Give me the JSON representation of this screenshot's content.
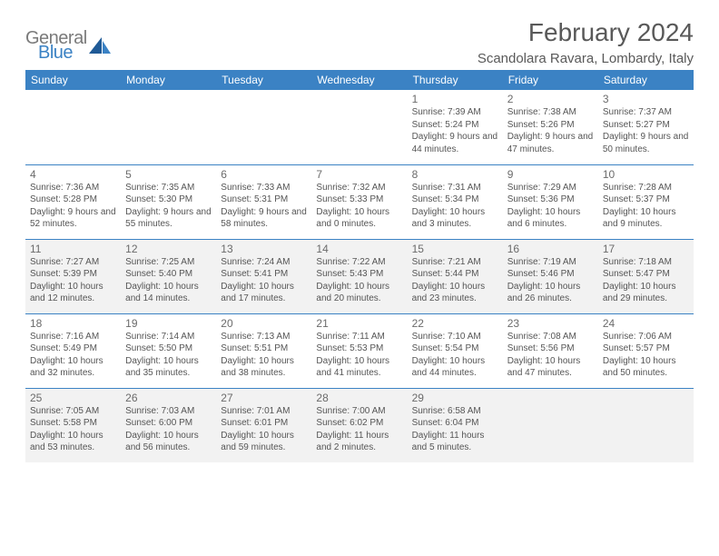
{
  "logo": {
    "text1": "General",
    "text2": "Blue"
  },
  "title": "February 2024",
  "location": "Scandolara Ravara, Lombardy, Italy",
  "colors": {
    "header_bg": "#3b82c4",
    "header_fg": "#ffffff",
    "shade": "#f2f2f2",
    "border": "#3b82c4",
    "text": "#555555",
    "title_color": "#595959"
  },
  "fonts": {
    "title_size": 28,
    "location_size": 15,
    "header_size": 12,
    "daynum_size": 12,
    "info_size": 10
  },
  "day_headers": [
    "Sunday",
    "Monday",
    "Tuesday",
    "Wednesday",
    "Thursday",
    "Friday",
    "Saturday"
  ],
  "weeks": [
    [
      {
        "num": "",
        "sunrise": "",
        "sunset": "",
        "daylight": "",
        "shade": false
      },
      {
        "num": "",
        "sunrise": "",
        "sunset": "",
        "daylight": "",
        "shade": false
      },
      {
        "num": "",
        "sunrise": "",
        "sunset": "",
        "daylight": "",
        "shade": false
      },
      {
        "num": "",
        "sunrise": "",
        "sunset": "",
        "daylight": "",
        "shade": false
      },
      {
        "num": "1",
        "sunrise": "Sunrise: 7:39 AM",
        "sunset": "Sunset: 5:24 PM",
        "daylight": "Daylight: 9 hours and 44 minutes.",
        "shade": false
      },
      {
        "num": "2",
        "sunrise": "Sunrise: 7:38 AM",
        "sunset": "Sunset: 5:26 PM",
        "daylight": "Daylight: 9 hours and 47 minutes.",
        "shade": false
      },
      {
        "num": "3",
        "sunrise": "Sunrise: 7:37 AM",
        "sunset": "Sunset: 5:27 PM",
        "daylight": "Daylight: 9 hours and 50 minutes.",
        "shade": false
      }
    ],
    [
      {
        "num": "4",
        "sunrise": "Sunrise: 7:36 AM",
        "sunset": "Sunset: 5:28 PM",
        "daylight": "Daylight: 9 hours and 52 minutes.",
        "shade": false
      },
      {
        "num": "5",
        "sunrise": "Sunrise: 7:35 AM",
        "sunset": "Sunset: 5:30 PM",
        "daylight": "Daylight: 9 hours and 55 minutes.",
        "shade": false
      },
      {
        "num": "6",
        "sunrise": "Sunrise: 7:33 AM",
        "sunset": "Sunset: 5:31 PM",
        "daylight": "Daylight: 9 hours and 58 minutes.",
        "shade": false
      },
      {
        "num": "7",
        "sunrise": "Sunrise: 7:32 AM",
        "sunset": "Sunset: 5:33 PM",
        "daylight": "Daylight: 10 hours and 0 minutes.",
        "shade": false
      },
      {
        "num": "8",
        "sunrise": "Sunrise: 7:31 AM",
        "sunset": "Sunset: 5:34 PM",
        "daylight": "Daylight: 10 hours and 3 minutes.",
        "shade": false
      },
      {
        "num": "9",
        "sunrise": "Sunrise: 7:29 AM",
        "sunset": "Sunset: 5:36 PM",
        "daylight": "Daylight: 10 hours and 6 minutes.",
        "shade": false
      },
      {
        "num": "10",
        "sunrise": "Sunrise: 7:28 AM",
        "sunset": "Sunset: 5:37 PM",
        "daylight": "Daylight: 10 hours and 9 minutes.",
        "shade": false
      }
    ],
    [
      {
        "num": "11",
        "sunrise": "Sunrise: 7:27 AM",
        "sunset": "Sunset: 5:39 PM",
        "daylight": "Daylight: 10 hours and 12 minutes.",
        "shade": true
      },
      {
        "num": "12",
        "sunrise": "Sunrise: 7:25 AM",
        "sunset": "Sunset: 5:40 PM",
        "daylight": "Daylight: 10 hours and 14 minutes.",
        "shade": true
      },
      {
        "num": "13",
        "sunrise": "Sunrise: 7:24 AM",
        "sunset": "Sunset: 5:41 PM",
        "daylight": "Daylight: 10 hours and 17 minutes.",
        "shade": true
      },
      {
        "num": "14",
        "sunrise": "Sunrise: 7:22 AM",
        "sunset": "Sunset: 5:43 PM",
        "daylight": "Daylight: 10 hours and 20 minutes.",
        "shade": true
      },
      {
        "num": "15",
        "sunrise": "Sunrise: 7:21 AM",
        "sunset": "Sunset: 5:44 PM",
        "daylight": "Daylight: 10 hours and 23 minutes.",
        "shade": true
      },
      {
        "num": "16",
        "sunrise": "Sunrise: 7:19 AM",
        "sunset": "Sunset: 5:46 PM",
        "daylight": "Daylight: 10 hours and 26 minutes.",
        "shade": true
      },
      {
        "num": "17",
        "sunrise": "Sunrise: 7:18 AM",
        "sunset": "Sunset: 5:47 PM",
        "daylight": "Daylight: 10 hours and 29 minutes.",
        "shade": true
      }
    ],
    [
      {
        "num": "18",
        "sunrise": "Sunrise: 7:16 AM",
        "sunset": "Sunset: 5:49 PM",
        "daylight": "Daylight: 10 hours and 32 minutes.",
        "shade": false
      },
      {
        "num": "19",
        "sunrise": "Sunrise: 7:14 AM",
        "sunset": "Sunset: 5:50 PM",
        "daylight": "Daylight: 10 hours and 35 minutes.",
        "shade": false
      },
      {
        "num": "20",
        "sunrise": "Sunrise: 7:13 AM",
        "sunset": "Sunset: 5:51 PM",
        "daylight": "Daylight: 10 hours and 38 minutes.",
        "shade": false
      },
      {
        "num": "21",
        "sunrise": "Sunrise: 7:11 AM",
        "sunset": "Sunset: 5:53 PM",
        "daylight": "Daylight: 10 hours and 41 minutes.",
        "shade": false
      },
      {
        "num": "22",
        "sunrise": "Sunrise: 7:10 AM",
        "sunset": "Sunset: 5:54 PM",
        "daylight": "Daylight: 10 hours and 44 minutes.",
        "shade": false
      },
      {
        "num": "23",
        "sunrise": "Sunrise: 7:08 AM",
        "sunset": "Sunset: 5:56 PM",
        "daylight": "Daylight: 10 hours and 47 minutes.",
        "shade": false
      },
      {
        "num": "24",
        "sunrise": "Sunrise: 7:06 AM",
        "sunset": "Sunset: 5:57 PM",
        "daylight": "Daylight: 10 hours and 50 minutes.",
        "shade": false
      }
    ],
    [
      {
        "num": "25",
        "sunrise": "Sunrise: 7:05 AM",
        "sunset": "Sunset: 5:58 PM",
        "daylight": "Daylight: 10 hours and 53 minutes.",
        "shade": true
      },
      {
        "num": "26",
        "sunrise": "Sunrise: 7:03 AM",
        "sunset": "Sunset: 6:00 PM",
        "daylight": "Daylight: 10 hours and 56 minutes.",
        "shade": true
      },
      {
        "num": "27",
        "sunrise": "Sunrise: 7:01 AM",
        "sunset": "Sunset: 6:01 PM",
        "daylight": "Daylight: 10 hours and 59 minutes.",
        "shade": true
      },
      {
        "num": "28",
        "sunrise": "Sunrise: 7:00 AM",
        "sunset": "Sunset: 6:02 PM",
        "daylight": "Daylight: 11 hours and 2 minutes.",
        "shade": true
      },
      {
        "num": "29",
        "sunrise": "Sunrise: 6:58 AM",
        "sunset": "Sunset: 6:04 PM",
        "daylight": "Daylight: 11 hours and 5 minutes.",
        "shade": true
      },
      {
        "num": "",
        "sunrise": "",
        "sunset": "",
        "daylight": "",
        "shade": true
      },
      {
        "num": "",
        "sunrise": "",
        "sunset": "",
        "daylight": "",
        "shade": true
      }
    ]
  ]
}
